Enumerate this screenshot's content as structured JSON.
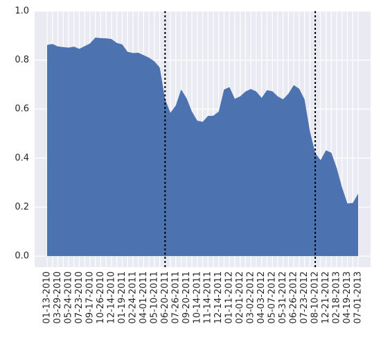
{
  "chart_data": {
    "type": "area",
    "categories": [
      "01-13-2010",
      null,
      "03-29-2010",
      null,
      "05-24-2010",
      null,
      "07-23-2010",
      null,
      "09-17-2010",
      null,
      "10-26-2010",
      null,
      "12-14-2010",
      null,
      "01-19-2011",
      null,
      "02-24-2011",
      null,
      "04-01-2011",
      null,
      "05-10-2011",
      null,
      "06-20-2011",
      null,
      "07-26-2011",
      null,
      "09-20-2011",
      null,
      "10-14-2011",
      null,
      "11-14-2011",
      null,
      "12-14-2011",
      null,
      "01-11-2012",
      null,
      "02-01-2012",
      null,
      "03-02-2012",
      null,
      "04-03-2012",
      null,
      "05-07-2012",
      null,
      "05-31-2012",
      null,
      "06-26-2012",
      null,
      "07-23-2012",
      null,
      "08-10-2012",
      null,
      "12-21-2012",
      null,
      "02-18-2013",
      null,
      "04-19-2013",
      null,
      "07-01-2013"
    ],
    "values": [
      0.862,
      0.866,
      0.856,
      0.853,
      0.851,
      0.855,
      0.846,
      0.857,
      0.868,
      0.892,
      0.89,
      0.889,
      0.886,
      0.87,
      0.864,
      0.834,
      0.829,
      0.83,
      0.82,
      0.81,
      0.795,
      0.77,
      0.64,
      0.585,
      0.615,
      0.68,
      0.645,
      0.59,
      0.553,
      0.548,
      0.572,
      0.573,
      0.59,
      0.68,
      0.69,
      0.642,
      0.652,
      0.672,
      0.682,
      0.672,
      0.646,
      0.677,
      0.673,
      0.652,
      0.64,
      0.663,
      0.698,
      0.683,
      0.64,
      0.51,
      0.42,
      0.392,
      0.432,
      0.422,
      0.36,
      0.28,
      0.215,
      0.217,
      0.255
    ],
    "color": "#4c72b0",
    "ylim": [
      -0.045,
      1.0
    ],
    "yticks": [
      {
        "value": 0,
        "label": "0.0"
      },
      0.2,
      0.4,
      0.6,
      0.8,
      {
        "value": 1,
        "label": "1.0"
      }
    ],
    "grid": true,
    "vlines": [
      "06-20-2011",
      "08-10-2012"
    ]
  }
}
